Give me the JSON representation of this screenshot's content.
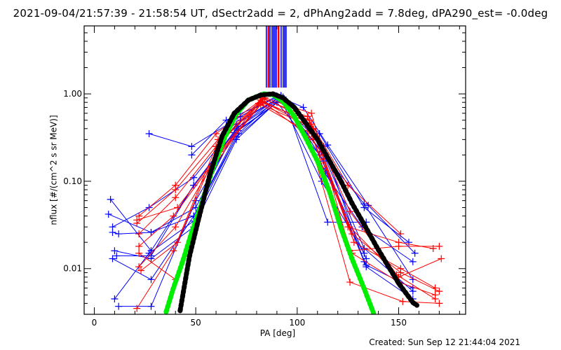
{
  "title": "2021-09-04/21:57:39 - 21:58:54 UT, dSectr2add = 2, dPhAng2add = 7.8deg, dPA290_est= -0.0deg",
  "created": "Created: Sun Sep 12 21:44:04 2021",
  "chart_data": {
    "type": "line",
    "title": "2021-09-04/21:57:39 - 21:58:54 UT, dSectr2add = 2, dPhAng2add = 7.8deg, dPA290_est= -0.0deg",
    "xlabel": "PA [deg]",
    "ylabel": "nflux [#/(cm^2 s sr MeV)]",
    "xlim": [
      -5,
      183
    ],
    "ylim": [
      0.003,
      6
    ],
    "yscale": "log",
    "grid": false,
    "xticks": [
      {
        "value": 0,
        "label": "0"
      },
      {
        "value": 50,
        "label": "50"
      },
      {
        "value": 100,
        "label": "100"
      },
      {
        "value": 150,
        "label": "150"
      }
    ],
    "yticks": [
      {
        "value": 1,
        "label": "1.00"
      },
      {
        "value": 0.1,
        "label": "0.10"
      },
      {
        "value": 0.01,
        "label": "0.01"
      }
    ],
    "colors": {
      "blue": "#0000ff",
      "red": "#ff0000",
      "green": "#00ee00",
      "black": "#000000"
    },
    "vlines": {
      "top": 6,
      "bottom": 1.18,
      "items": [
        {
          "pa": 84.8,
          "color": "blue"
        },
        {
          "pa": 85.8,
          "color": "red"
        },
        {
          "pa": 86.6,
          "color": "blue"
        },
        {
          "pa": 87.6,
          "color": "blue"
        },
        {
          "pa": 88.3,
          "color": "blue"
        },
        {
          "pa": 89.0,
          "color": "blue"
        },
        {
          "pa": 89.7,
          "color": "blue"
        },
        {
          "pa": 90.8,
          "color": "red"
        },
        {
          "pa": 92.1,
          "color": "blue"
        },
        {
          "pa": 93.1,
          "color": "blue"
        },
        {
          "pa": 93.8,
          "color": "blue"
        },
        {
          "pa": 94.5,
          "color": "blue"
        }
      ]
    },
    "series": [
      {
        "name": "blue-1",
        "color": "blue",
        "points": [
          [
            27,
            0.35
          ],
          [
            48,
            0.25
          ],
          [
            72,
            0.55
          ],
          [
            90,
            0.95
          ],
          [
            103,
            0.7
          ],
          [
            115,
            0.26
          ],
          [
            135,
            0.053
          ],
          [
            158,
            0.015
          ]
        ]
      },
      {
        "name": "blue-2",
        "color": "blue",
        "points": [
          [
            48,
            0.2
          ],
          [
            65,
            0.5
          ],
          [
            92,
            0.95
          ],
          [
            111,
            0.35
          ],
          [
            133,
            0.05
          ],
          [
            155,
            0.02
          ]
        ]
      },
      {
        "name": "blue-3",
        "color": "blue",
        "points": [
          [
            8,
            0.062
          ],
          [
            28,
            0.016
          ],
          [
            49,
            0.09
          ],
          [
            70,
            0.4
          ],
          [
            93,
            0.92
          ],
          [
            115,
            0.034
          ],
          [
            134,
            0.034
          ]
        ]
      },
      {
        "name": "blue-4",
        "color": "blue",
        "points": [
          [
            7,
            0.042
          ],
          [
            28,
            0.026
          ],
          [
            50,
            0.05
          ],
          [
            72,
            0.5
          ],
          [
            92,
            0.93
          ],
          [
            112,
            0.14
          ],
          [
            132,
            0.03
          ],
          [
            157,
            0.012
          ]
        ]
      },
      {
        "name": "blue-5",
        "color": "blue",
        "points": [
          [
            9,
            0.03
          ],
          [
            27,
            0.05
          ],
          [
            49,
            0.11
          ],
          [
            70,
            0.45
          ],
          [
            91,
            0.9
          ],
          [
            113,
            0.2
          ],
          [
            133,
            0.017
          ],
          [
            157,
            0.0055
          ]
        ]
      },
      {
        "name": "blue-6",
        "color": "blue",
        "points": [
          [
            9,
            0.026
          ],
          [
            12,
            0.025
          ],
          [
            28,
            0.026
          ],
          [
            49,
            0.04
          ],
          [
            71,
            0.35
          ],
          [
            90,
            0.88
          ],
          [
            113,
            0.25
          ],
          [
            133,
            0.012
          ]
        ]
      },
      {
        "name": "blue-7",
        "color": "blue",
        "points": [
          [
            10,
            0.016
          ],
          [
            28,
            0.013
          ],
          [
            49,
            0.03
          ],
          [
            70,
            0.3
          ],
          [
            92,
            0.9
          ],
          [
            114,
            0.13
          ],
          [
            134,
            0.011
          ],
          [
            157,
            0.006
          ]
        ]
      },
      {
        "name": "blue-8",
        "color": "blue",
        "points": [
          [
            9,
            0.013
          ],
          [
            28,
            0.0075
          ],
          [
            49,
            0.04
          ],
          [
            71,
            0.38
          ],
          [
            92,
            0.85
          ],
          [
            112,
            0.1
          ],
          [
            133,
            0.015
          ]
        ]
      },
      {
        "name": "blue-9",
        "color": "blue",
        "points": [
          [
            10,
            0.0045
          ],
          [
            27,
            0.015
          ],
          [
            49,
            0.035
          ],
          [
            70,
            0.32
          ],
          [
            90,
            0.8
          ],
          [
            111,
            0.2
          ],
          [
            134,
            0.013
          ]
        ]
      },
      {
        "name": "blue-10",
        "color": "blue",
        "points": [
          [
            12,
            0.0037
          ],
          [
            28,
            0.0037
          ],
          [
            50,
            0.06
          ],
          [
            71,
            0.42
          ],
          [
            92,
            0.96
          ],
          [
            113,
            0.17
          ],
          [
            134,
            0.0105
          ],
          [
            157,
            0.0045
          ]
        ]
      },
      {
        "name": "blue-11",
        "color": "blue",
        "points": [
          [
            11,
            0.014
          ],
          [
            28,
            0.014
          ],
          [
            49,
            0.09
          ],
          [
            69,
            0.36
          ],
          [
            92,
            0.85
          ],
          [
            112,
            0.22
          ],
          [
            133,
            0.055
          ],
          [
            157,
            0.0075
          ]
        ]
      },
      {
        "name": "red-1",
        "color": "red",
        "points": [
          [
            22,
            0.04
          ],
          [
            40,
            0.09
          ],
          [
            60,
            0.35
          ],
          [
            82,
            0.85
          ],
          [
            107,
            0.45
          ],
          [
            125,
            0.09
          ],
          [
            151,
            0.025
          ]
        ]
      },
      {
        "name": "red-2",
        "color": "red",
        "points": [
          [
            21,
            0.033
          ],
          [
            40,
            0.08
          ],
          [
            61,
            0.3
          ],
          [
            83,
            0.88
          ],
          [
            105,
            0.55
          ],
          [
            125,
            0.03
          ],
          [
            150,
            0.02
          ],
          [
            167,
            0.017
          ]
        ]
      },
      {
        "name": "red-3",
        "color": "red",
        "points": [
          [
            22,
            0.025
          ],
          [
            40,
            0.065
          ],
          [
            60,
            0.25
          ],
          [
            82,
            0.8
          ],
          [
            106,
            0.5
          ],
          [
            126,
            0.045
          ],
          [
            150,
            0.008
          ],
          [
            171,
            0.013
          ]
        ]
      },
      {
        "name": "red-4",
        "color": "red",
        "points": [
          [
            21,
            0.036
          ],
          [
            41,
            0.05
          ],
          [
            61,
            0.2
          ],
          [
            83,
            0.82
          ],
          [
            108,
            0.4
          ],
          [
            128,
            0.02
          ],
          [
            151,
            0.01
          ],
          [
            168,
            0.006
          ]
        ]
      },
      {
        "name": "red-5",
        "color": "red",
        "points": [
          [
            22,
            0.018
          ],
          [
            39,
            0.04
          ],
          [
            60,
            0.18
          ],
          [
            82,
            0.75
          ],
          [
            107,
            0.35
          ],
          [
            127,
            0.015
          ],
          [
            150,
            0.007
          ],
          [
            168,
            0.005
          ]
        ]
      },
      {
        "name": "red-6",
        "color": "red",
        "points": [
          [
            22,
            0.0105
          ],
          [
            40,
            0.03
          ],
          [
            62,
            0.22
          ],
          [
            83,
            0.9
          ],
          [
            106,
            0.5
          ],
          [
            126,
            0.03
          ],
          [
            149,
            0.0085
          ],
          [
            168,
            0.0045
          ]
        ]
      },
      {
        "name": "red-7",
        "color": "red",
        "points": [
          [
            22,
            0.015
          ],
          [
            40,
            0.0075
          ],
          [
            59,
            0.15
          ],
          [
            81,
            0.78
          ],
          [
            104,
            0.45
          ],
          [
            126,
            0.007
          ],
          [
            152,
            0.0042
          ],
          [
            170,
            0.004
          ]
        ]
      },
      {
        "name": "red-8",
        "color": "red",
        "points": [
          [
            21,
            0.0035
          ],
          [
            39,
            0.016
          ],
          [
            60,
            0.25
          ],
          [
            82,
            0.85
          ],
          [
            108,
            0.3
          ],
          [
            127,
            0.025
          ],
          [
            151,
            0.009
          ],
          [
            170,
            0.0055
          ]
        ]
      },
      {
        "name": "red-9",
        "color": "red",
        "points": [
          [
            23,
            0.0095
          ],
          [
            41,
            0.02
          ],
          [
            62,
            0.28
          ],
          [
            84,
            0.9
          ],
          [
            107,
            0.6
          ],
          [
            126,
            0.016
          ],
          [
            150,
            0.018
          ],
          [
            170,
            0.018
          ]
        ]
      }
    ],
    "fits": [
      {
        "name": "green-fit",
        "color": "green",
        "points": [
          [
            35.4,
            0.0032
          ],
          [
            38.9,
            0.0059
          ],
          [
            43.5,
            0.012
          ],
          [
            48,
            0.026
          ],
          [
            52.6,
            0.053
          ],
          [
            58.4,
            0.14
          ],
          [
            64.1,
            0.31
          ],
          [
            69.9,
            0.586
          ],
          [
            76,
            0.85
          ],
          [
            83.5,
            1.0
          ],
          [
            88,
            0.98
          ],
          [
            93,
            0.82
          ],
          [
            98.6,
            0.55
          ],
          [
            104,
            0.32
          ],
          [
            110,
            0.17
          ],
          [
            116,
            0.075
          ],
          [
            121.6,
            0.029
          ],
          [
            127,
            0.013
          ],
          [
            133,
            0.0059
          ],
          [
            137.6,
            0.0031
          ]
        ]
      },
      {
        "name": "black-fit",
        "color": "black",
        "points": [
          [
            42.3,
            0.0033
          ],
          [
            46.9,
            0.0138
          ],
          [
            51.4,
            0.037
          ],
          [
            57,
            0.12
          ],
          [
            63,
            0.33
          ],
          [
            69,
            0.6
          ],
          [
            76,
            0.85
          ],
          [
            82,
            0.97
          ],
          [
            88,
            1.0
          ],
          [
            93,
            0.9
          ],
          [
            98.6,
            0.7
          ],
          [
            104,
            0.47
          ],
          [
            110,
            0.3
          ],
          [
            116,
            0.17
          ],
          [
            121.6,
            0.1
          ],
          [
            127,
            0.056
          ],
          [
            133,
            0.032
          ],
          [
            139,
            0.018
          ],
          [
            144.5,
            0.011
          ],
          [
            150,
            0.0068
          ],
          [
            157,
            0.0041
          ],
          [
            159,
            0.0038
          ]
        ]
      }
    ]
  }
}
